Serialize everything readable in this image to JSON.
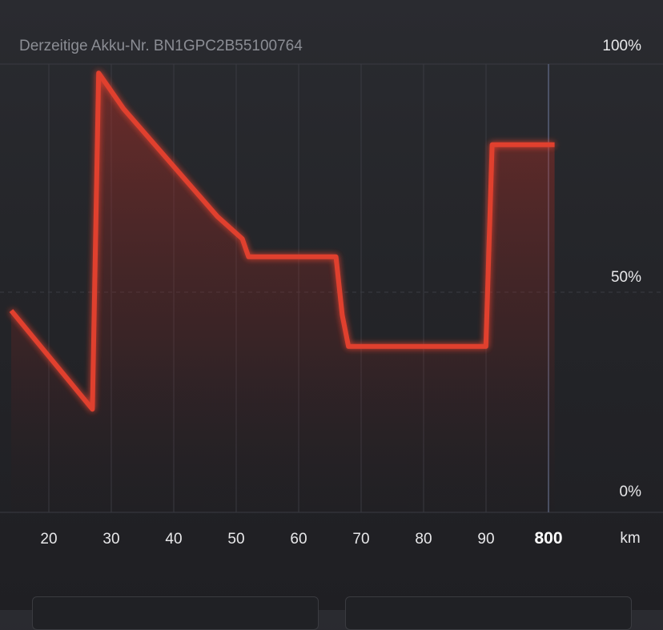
{
  "header": {
    "battery_label": "Derzeitige Akku-Nr. BN1GPC2B55100764"
  },
  "colors": {
    "line": "#e0402f",
    "fill": "#c03025",
    "grid": "#3a3b42",
    "marker": "#4b5266"
  },
  "chart_data": {
    "type": "line",
    "title": "",
    "xlabel": "km",
    "ylabel": "",
    "y_ticks": [
      "100%",
      "50%",
      "0%"
    ],
    "x_tick_labels": [
      "20",
      "30",
      "40",
      "50",
      "60",
      "70",
      "80",
      "90",
      "800"
    ],
    "highlight_tick": "800",
    "x_unit": "km",
    "ylim": [
      0,
      100
    ],
    "grid": true,
    "series": [
      {
        "points": [
          [
            12,
            45
          ],
          [
            25,
            23
          ],
          [
            26,
            98
          ],
          [
            30,
            90
          ],
          [
            35,
            82
          ],
          [
            40,
            74
          ],
          [
            45,
            66
          ],
          [
            49,
            61
          ],
          [
            50,
            57
          ],
          [
            64,
            57
          ],
          [
            65,
            44
          ],
          [
            66,
            37
          ],
          [
            80,
            37
          ],
          [
            88,
            37
          ],
          [
            89,
            82
          ],
          [
            99,
            82
          ]
        ]
      }
    ]
  },
  "cards": {
    "left_text": "",
    "right_text": ""
  }
}
